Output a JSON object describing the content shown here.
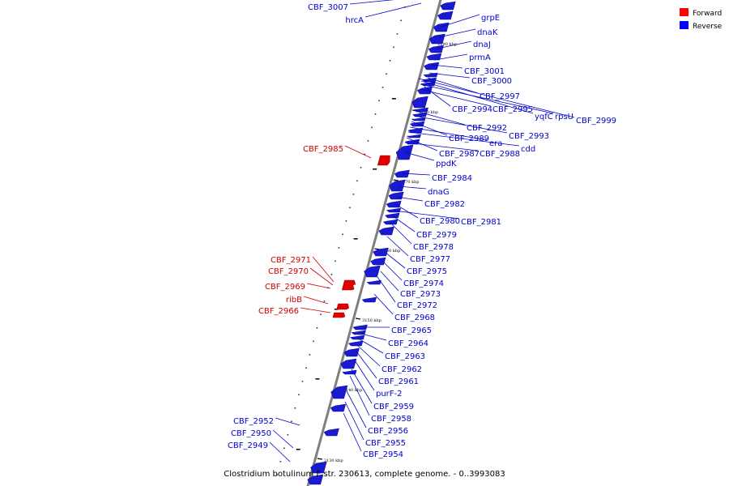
{
  "legend": [
    {
      "label": "Forward",
      "color": "#ff0000"
    },
    {
      "label": "Reverse",
      "color": "#0000ff"
    }
  ],
  "caption": "Clostridium botulinum F str. 230613, complete genome. - 0..3993083",
  "colors": {
    "forward": "#e00000",
    "reverse": "#1a1ad0",
    "label_forward": "#cc0000",
    "label_reverse": "#0000cc",
    "backbone": "#808080"
  },
  "ticks": [
    "3190 kbp",
    "3180 kbp",
    "3170 kbp",
    "3160 kbp",
    "3150 kbp",
    "3140 kbp",
    "3130 kbp"
  ],
  "labels": [
    {
      "text": "CBF_3007",
      "strand": "reverse"
    },
    {
      "text": "hrcA",
      "strand": "reverse"
    },
    {
      "text": "grpE",
      "strand": "reverse"
    },
    {
      "text": "dnaK",
      "strand": "reverse"
    },
    {
      "text": "dnaJ",
      "strand": "reverse"
    },
    {
      "text": "prmA",
      "strand": "reverse"
    },
    {
      "text": "CBF_3001",
      "strand": "reverse"
    },
    {
      "text": "CBF_3000",
      "strand": "reverse"
    },
    {
      "text": "CBF_2997",
      "strand": "reverse"
    },
    {
      "text": "CBF_2994",
      "strand": "reverse"
    },
    {
      "text": "CBF_2995",
      "strand": "reverse"
    },
    {
      "text": "yqfC",
      "strand": "reverse"
    },
    {
      "text": "rpsU",
      "strand": "reverse"
    },
    {
      "text": "CBF_2999",
      "strand": "reverse"
    },
    {
      "text": "CBF_2992",
      "strand": "reverse"
    },
    {
      "text": "CBF_2993",
      "strand": "reverse"
    },
    {
      "text": "CBF_2989",
      "strand": "reverse"
    },
    {
      "text": "era",
      "strand": "reverse"
    },
    {
      "text": "cdd",
      "strand": "reverse"
    },
    {
      "text": "CBF_2987",
      "strand": "reverse"
    },
    {
      "text": "CBF_2988",
      "strand": "reverse"
    },
    {
      "text": "CBF_2985",
      "strand": "forward"
    },
    {
      "text": "ppdK",
      "strand": "reverse"
    },
    {
      "text": "CBF_2984",
      "strand": "reverse"
    },
    {
      "text": "dnaG",
      "strand": "reverse"
    },
    {
      "text": "CBF_2982",
      "strand": "reverse"
    },
    {
      "text": "CBF_2980",
      "strand": "reverse"
    },
    {
      "text": "CBF_2981",
      "strand": "reverse"
    },
    {
      "text": "CBF_2979",
      "strand": "reverse"
    },
    {
      "text": "CBF_2978",
      "strand": "reverse"
    },
    {
      "text": "CBF_2977",
      "strand": "reverse"
    },
    {
      "text": "CBF_2975",
      "strand": "reverse"
    },
    {
      "text": "CBF_2974",
      "strand": "reverse"
    },
    {
      "text": "CBF_2973",
      "strand": "reverse"
    },
    {
      "text": "CBF_2972",
      "strand": "reverse"
    },
    {
      "text": "CBF_2968",
      "strand": "reverse"
    },
    {
      "text": "CBF_2971",
      "strand": "forward"
    },
    {
      "text": "CBF_2970",
      "strand": "forward"
    },
    {
      "text": "CBF_2969",
      "strand": "forward"
    },
    {
      "text": "ribB",
      "strand": "forward"
    },
    {
      "text": "CBF_2966",
      "strand": "forward"
    },
    {
      "text": "CBF_2965",
      "strand": "reverse"
    },
    {
      "text": "CBF_2964",
      "strand": "reverse"
    },
    {
      "text": "CBF_2963",
      "strand": "reverse"
    },
    {
      "text": "CBF_2962",
      "strand": "reverse"
    },
    {
      "text": "CBF_2961",
      "strand": "reverse"
    },
    {
      "text": "purF-2",
      "strand": "reverse"
    },
    {
      "text": "CBF_2959",
      "strand": "reverse"
    },
    {
      "text": "CBF_2958",
      "strand": "reverse"
    },
    {
      "text": "CBF_2956",
      "strand": "reverse"
    },
    {
      "text": "CBF_2955",
      "strand": "reverse"
    },
    {
      "text": "CBF_2954",
      "strand": "reverse"
    },
    {
      "text": "CBF_2952",
      "strand": "reverse"
    },
    {
      "text": "CBF_2950",
      "strand": "reverse"
    },
    {
      "text": "CBF_2949",
      "strand": "reverse"
    }
  ]
}
